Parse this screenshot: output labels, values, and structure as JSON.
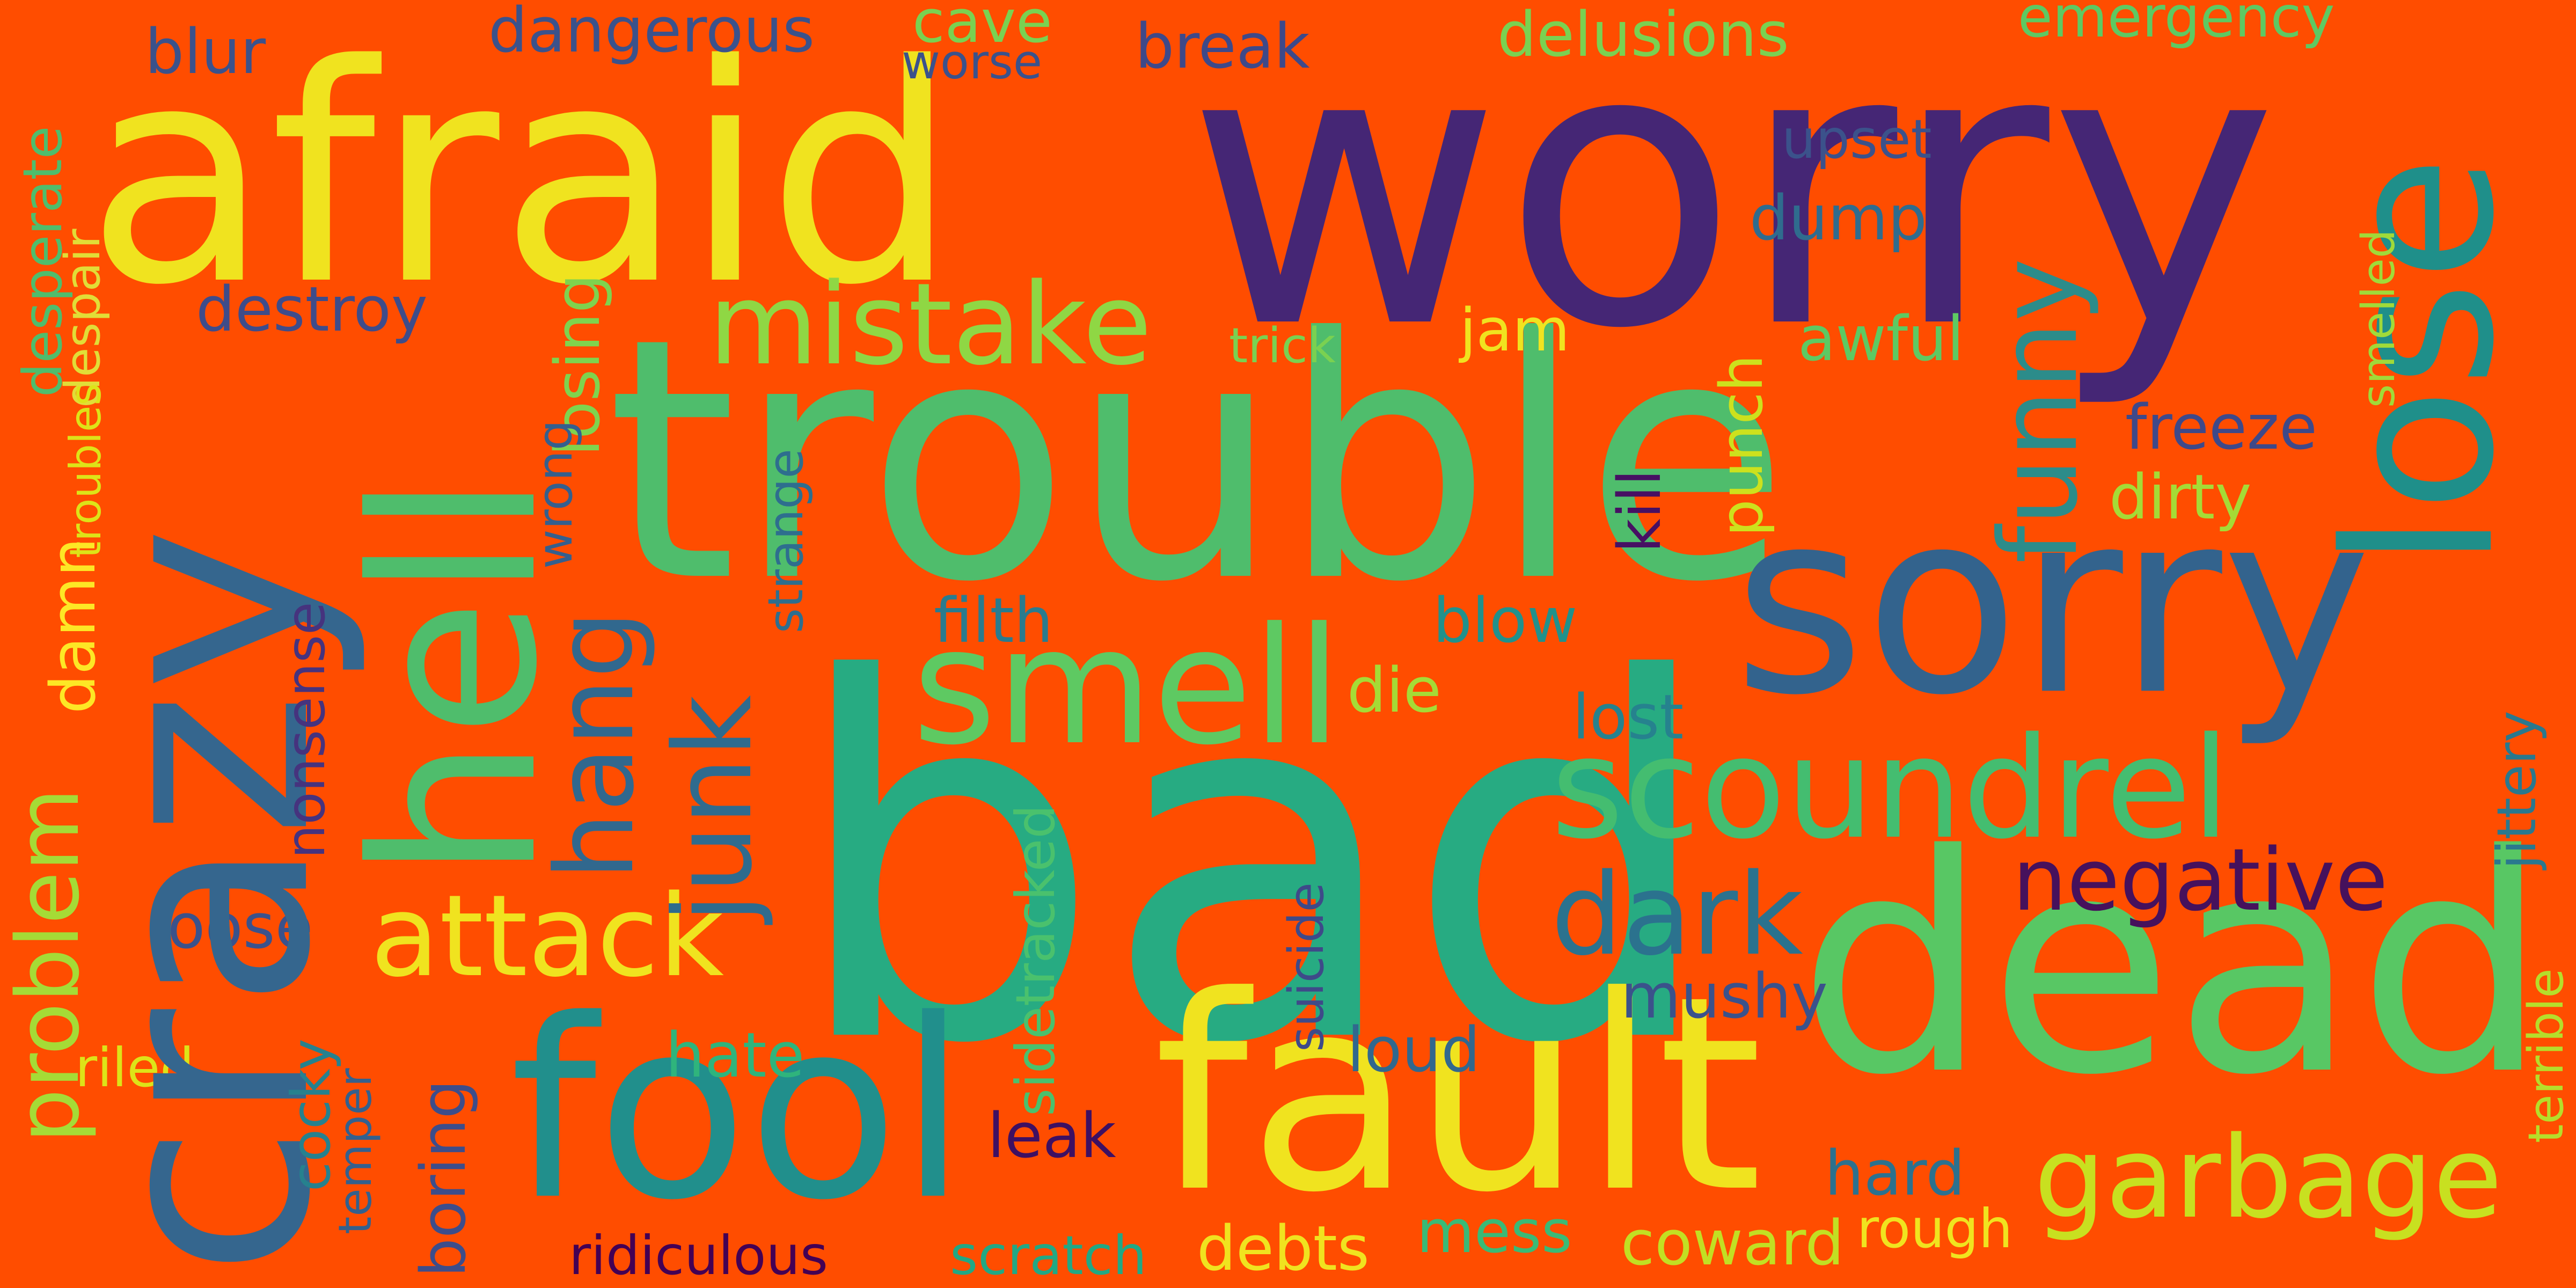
{
  "background": "#ff4d00",
  "words": [
    {
      "text": "afraid",
      "color": "#f0e31f"
    },
    {
      "text": "worry",
      "color": "#452675"
    },
    {
      "text": "trouble",
      "color": "#4fbd6c"
    },
    {
      "text": "bad",
      "color": "#27ab82"
    },
    {
      "text": "dead",
      "color": "#58c764"
    },
    {
      "text": "sorry",
      "color": "#33638d"
    },
    {
      "text": "fault",
      "color": "#f0e31f"
    },
    {
      "text": "fool",
      "color": "#218f8c"
    },
    {
      "text": "crazy",
      "color": "#35668e"
    },
    {
      "text": "hell",
      "color": "#4fbd6c"
    },
    {
      "text": "lose",
      "color": "#1f8f8a"
    },
    {
      "text": "smell",
      "color": "#5ec962"
    },
    {
      "text": "scoundrel",
      "color": "#44bd70"
    },
    {
      "text": "mistake",
      "color": "#8fd744"
    },
    {
      "text": "attack",
      "color": "#f0e31f"
    },
    {
      "text": "garbage",
      "color": "#c8e020"
    },
    {
      "text": "dark",
      "color": "#2b728e"
    },
    {
      "text": "negative",
      "color": "#46115c"
    },
    {
      "text": "hang",
      "color": "#31688e"
    },
    {
      "text": "junk",
      "color": "#2f6b8e"
    },
    {
      "text": "funny",
      "color": "#2c8c8a"
    },
    {
      "text": "problem",
      "color": "#a5db36"
    },
    {
      "text": "dangerous",
      "color": "#3b528b"
    },
    {
      "text": "delusions",
      "color": "#7ad151"
    },
    {
      "text": "emergency",
      "color": "#5ec962"
    },
    {
      "text": "cave",
      "color": "#7ad151"
    },
    {
      "text": "worse",
      "color": "#3b528b"
    },
    {
      "text": "blur",
      "color": "#3b528b"
    },
    {
      "text": "break",
      "color": "#3e4989"
    },
    {
      "text": "upset",
      "color": "#3b528b"
    },
    {
      "text": "dump",
      "color": "#2f6c8e"
    },
    {
      "text": "destroy",
      "color": "#3e4c8a"
    },
    {
      "text": "jam",
      "color": "#f0e31f"
    },
    {
      "text": "trick",
      "color": "#7ad151"
    },
    {
      "text": "awful",
      "color": "#5ec962"
    },
    {
      "text": "freeze",
      "color": "#3e4989"
    },
    {
      "text": "dirty",
      "color": "#a5db36"
    },
    {
      "text": "kill",
      "color": "#471063"
    },
    {
      "text": "punch",
      "color": "#cde11d"
    },
    {
      "text": "filth",
      "color": "#2a7b8e"
    },
    {
      "text": "blow",
      "color": "#21918c"
    },
    {
      "text": "die",
      "color": "#a5db36"
    },
    {
      "text": "lost",
      "color": "#26828e"
    },
    {
      "text": "mushy",
      "color": "#3b528b"
    },
    {
      "text": "loud",
      "color": "#31688e"
    },
    {
      "text": "leak",
      "color": "#3e1062"
    },
    {
      "text": "hate",
      "color": "#2fb47c"
    },
    {
      "text": "loose",
      "color": "#3b528b"
    },
    {
      "text": "hard",
      "color": "#2c718e"
    },
    {
      "text": "mess",
      "color": "#3aba76"
    },
    {
      "text": "coward",
      "color": "#c2df23"
    },
    {
      "text": "rough",
      "color": "#f0e31f"
    },
    {
      "text": "debts",
      "color": "#f0e31f"
    },
    {
      "text": "scratch",
      "color": "#22a884"
    },
    {
      "text": "ridiculous",
      "color": "#440154"
    },
    {
      "text": "riled",
      "color": "#dde318"
    },
    {
      "text": "desperate",
      "color": "#4fbd6c"
    },
    {
      "text": "despair",
      "color": "#e1dd37"
    },
    {
      "text": "troubles",
      "color": "#dde318"
    },
    {
      "text": "losing",
      "color": "#7fd34e"
    },
    {
      "text": "wrong",
      "color": "#355f8d"
    },
    {
      "text": "strange",
      "color": "#2e6e8e"
    },
    {
      "text": "damn",
      "color": "#fde725"
    },
    {
      "text": "nonsense",
      "color": "#46337e"
    },
    {
      "text": "cocky",
      "color": "#26818e"
    },
    {
      "text": "temper",
      "color": "#34608d"
    },
    {
      "text": "boring",
      "color": "#3d4d8a"
    },
    {
      "text": "sidetracked",
      "color": "#4ac16d"
    },
    {
      "text": "suicide",
      "color": "#3e4a89"
    },
    {
      "text": "smelled",
      "color": "#a0da39"
    },
    {
      "text": "jittery",
      "color": "#2a788e"
    },
    {
      "text": "terrible",
      "color": "#b5de2b"
    }
  ]
}
